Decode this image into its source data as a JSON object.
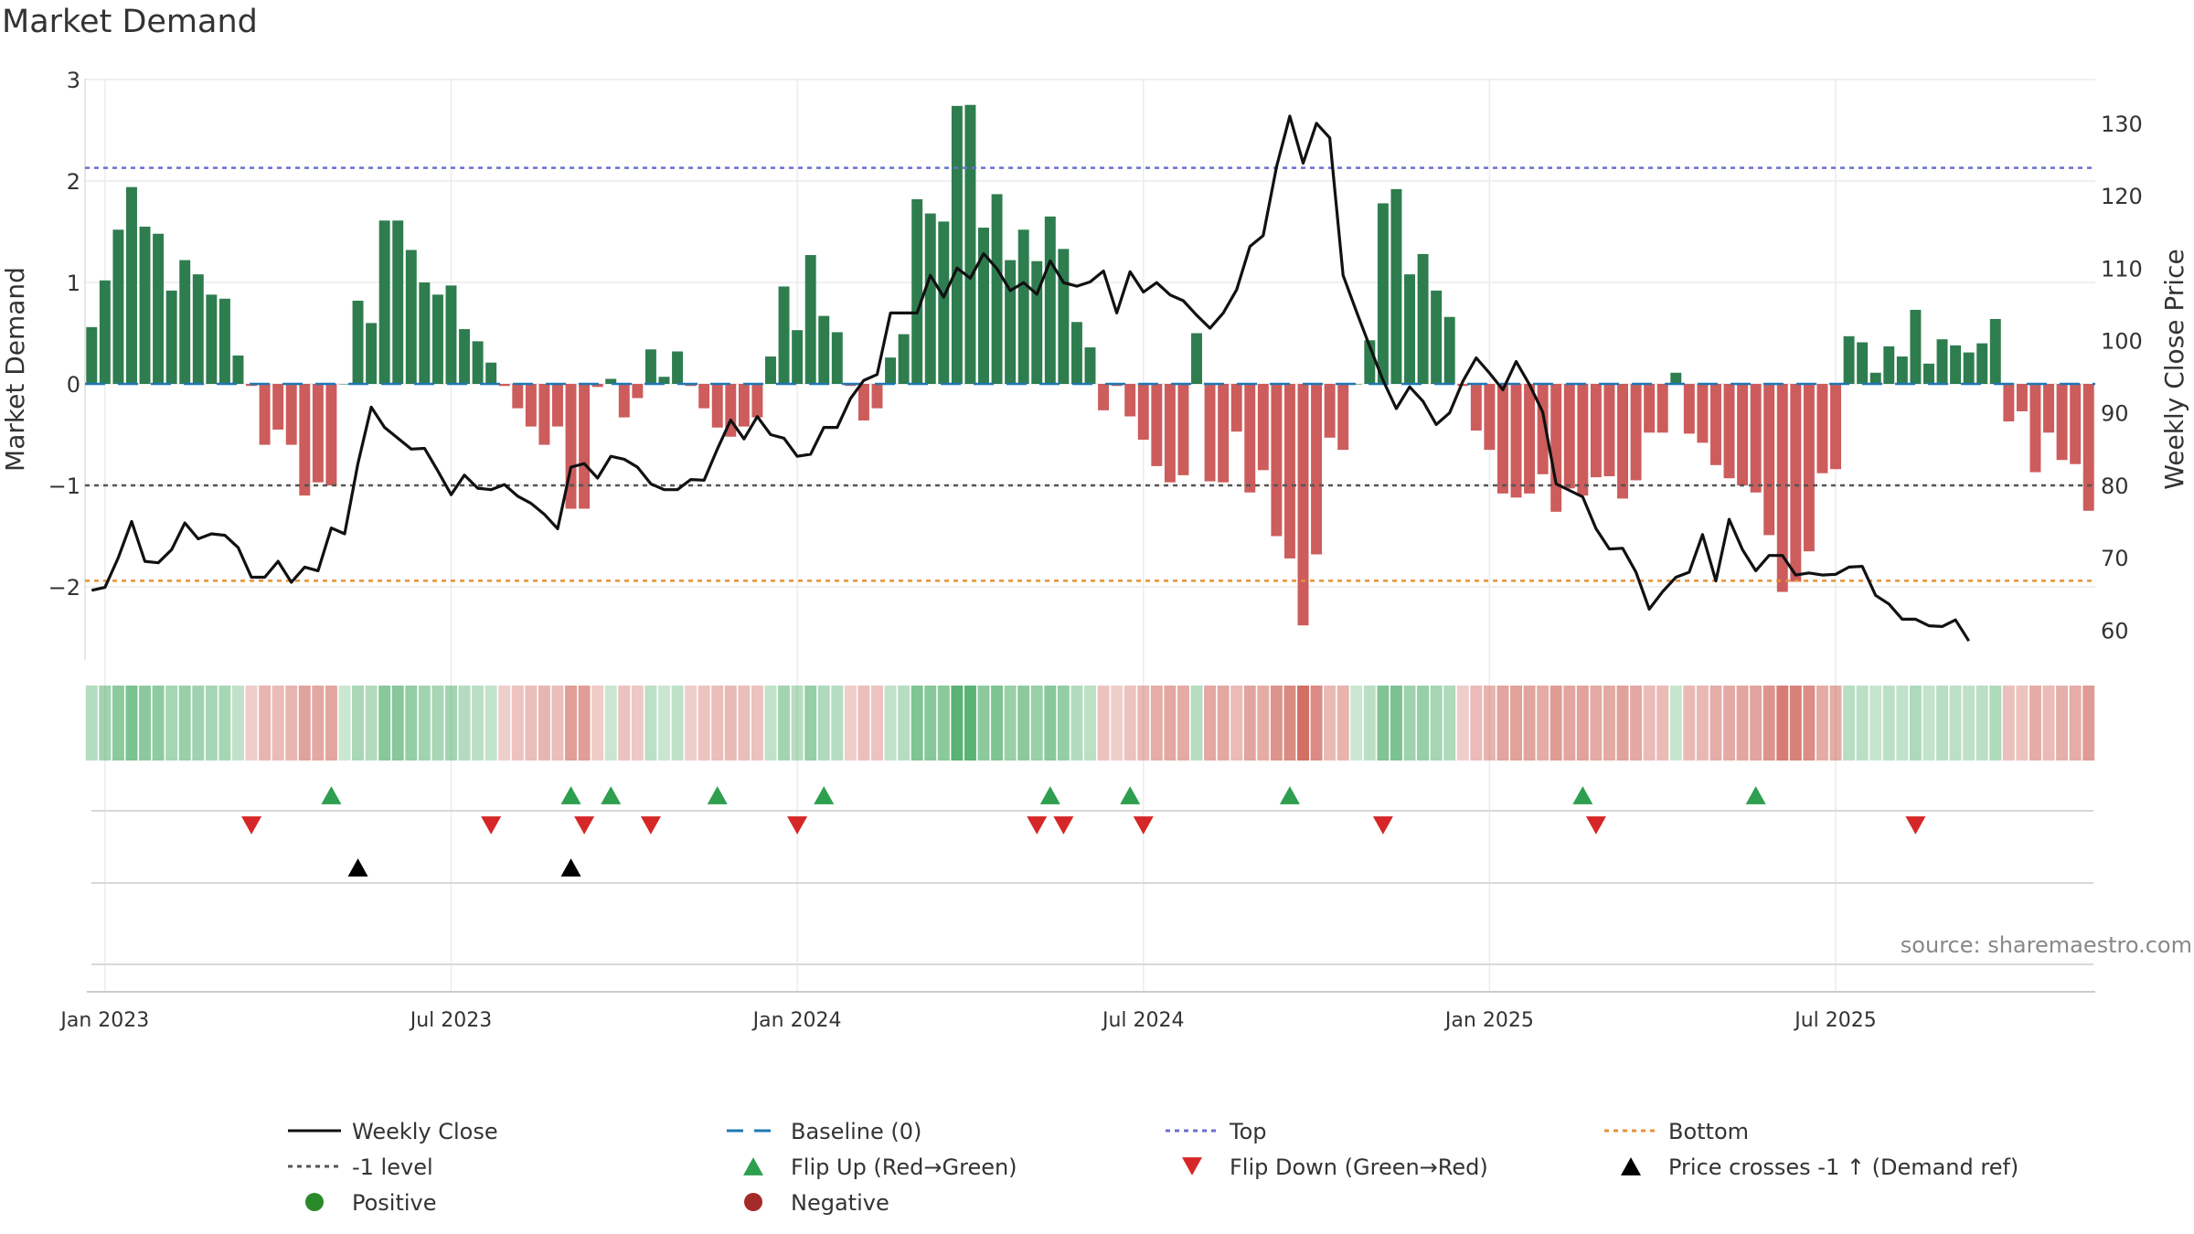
{
  "chart_data": {
    "type": "bar",
    "title": "Market Demand",
    "ylabel": "Market Demand",
    "y2label": "Weekly Close Price",
    "ylim": [
      -2.7,
      3.0
    ],
    "y2lim": [
      55,
      133
    ],
    "yticks": [
      "3",
      "2",
      "1",
      "0",
      "−1",
      "−2"
    ],
    "y2ticks": [
      "130",
      "120",
      "110",
      "100",
      "90",
      "80",
      "70",
      "60"
    ],
    "xticks": [
      "Jan 2023",
      "Jul 2023",
      "Jan 2024",
      "Jul 2024",
      "Jan 2025",
      "Jul 2025"
    ],
    "xtick_weeks": [
      1,
      27,
      53,
      79,
      105,
      131
    ],
    "top_level": 2.13,
    "bottom_level": -1.94,
    "minus1_level": -1.0,
    "demand": [
      0.56,
      1.02,
      1.52,
      1.94,
      1.55,
      1.48,
      0.92,
      1.22,
      1.08,
      0.88,
      0.84,
      0.28,
      -0.02,
      -0.6,
      -0.45,
      -0.6,
      -1.1,
      -0.97,
      -1.0,
      0.0,
      0.82,
      0.6,
      1.61,
      1.61,
      1.32,
      1.0,
      0.88,
      0.97,
      0.54,
      0.42,
      0.21,
      -0.02,
      -0.24,
      -0.42,
      -0.6,
      -0.42,
      -1.23,
      -1.23,
      -0.03,
      0.05,
      -0.33,
      -0.14,
      0.34,
      0.07,
      0.32,
      -0.02,
      -0.24,
      -0.43,
      -0.52,
      -0.42,
      -0.33,
      0.27,
      0.96,
      0.53,
      1.27,
      0.67,
      0.51,
      -0.02,
      -0.36,
      -0.24,
      0.26,
      0.49,
      1.82,
      1.68,
      1.6,
      2.74,
      2.75,
      1.54,
      1.87,
      1.22,
      1.52,
      1.21,
      1.65,
      1.33,
      0.61,
      0.36,
      -0.26,
      -0.02,
      -0.32,
      -0.55,
      -0.81,
      -0.97,
      -0.9,
      0.5,
      -0.96,
      -0.97,
      -0.47,
      -1.07,
      -0.85,
      -1.5,
      -1.72,
      -2.38,
      -1.68,
      -0.53,
      -0.65,
      0.0,
      0.43,
      1.78,
      1.92,
      1.08,
      1.28,
      0.92,
      0.66,
      -0.02,
      -0.46,
      -0.65,
      -1.08,
      -1.12,
      -1.08,
      -0.89,
      -1.26,
      -1.03,
      -1.1,
      -0.92,
      -0.91,
      -1.13,
      -0.95,
      -0.48,
      -0.48,
      0.11,
      -0.49,
      -0.58,
      -0.8,
      -0.93,
      -1.0,
      -1.07,
      -1.49,
      -2.05,
      -1.95,
      -1.65,
      -0.88,
      -0.84,
      0.47,
      0.41,
      0.11,
      0.37,
      0.27,
      0.73,
      0.2,
      0.44,
      0.38,
      0.31,
      0.4,
      0.64,
      -0.37,
      -0.27,
      -0.87,
      -0.48,
      -0.75,
      -0.79,
      -1.25
    ],
    "close": [
      65.5,
      65.9,
      70,
      75,
      69.5,
      69.3,
      71.1,
      74.8,
      72.6,
      73.3,
      73.1,
      71.4,
      67.3,
      67.3,
      69.5,
      66.6,
      68.7,
      68.2,
      74.1,
      73.3,
      83,
      90.8,
      88,
      86.5,
      85,
      85.1,
      82,
      78.7,
      81.4,
      79.6,
      79.4,
      80.1,
      78.5,
      77.5,
      76,
      74,
      82.5,
      83,
      81,
      84,
      83.6,
      82.5,
      80.2,
      79.4,
      79.4,
      80.8,
      80.7,
      85,
      89,
      86.4,
      89.5,
      87,
      86.5,
      84,
      84.3,
      88,
      88,
      92,
      94.5,
      95.3,
      103.8,
      103.8,
      103.8,
      109,
      106,
      110,
      108.6,
      112,
      109.9,
      106.9,
      108,
      106.4,
      111,
      108,
      107.5,
      108.1,
      109.6,
      103.8,
      109.5,
      106.7,
      108,
      106.3,
      105.5,
      103.5,
      101.7,
      103.8,
      107,
      113,
      114.5,
      124,
      131,
      124.5,
      130,
      128,
      109,
      104,
      99.2,
      94.5,
      90.6,
      93.6,
      91.6,
      88.4,
      90,
      94.4,
      97.6,
      95.5,
      93.2,
      97.1,
      93.9,
      90.1,
      80.2,
      79.3,
      78.4,
      74,
      71.2,
      71.3,
      68,
      62.9,
      65.3,
      67.3,
      68,
      73.2,
      66.8,
      75.3,
      71.1,
      68.2,
      70.3,
      70.3,
      67.6,
      67.9,
      67.6,
      67.7,
      68.7,
      68.8,
      64.8,
      63.6,
      61.5,
      61.5,
      60.6,
      60.5,
      61.4,
      58.5
    ],
    "flip_up_weeks": [
      18,
      36,
      39,
      47,
      55,
      72,
      78,
      90,
      112,
      125
    ],
    "flip_down_weeks": [
      12,
      30,
      37,
      42,
      53,
      71,
      73,
      79,
      97,
      113,
      137
    ],
    "cross_weeks": [
      20,
      36
    ],
    "colors": {
      "positive": "#2e7d4f",
      "negative": "#cd5c5c",
      "close": "#111111",
      "baseline": "#1f77b4",
      "top": "#6a6fd0",
      "bottom": "#e69138",
      "minus1": "#555555",
      "flip_up": "#2e9e4f",
      "flip_down": "#d62728",
      "cross": "#000000",
      "legend_positive": "#2a8a2a",
      "legend_negative": "#a52a2a"
    },
    "legend": [
      {
        "label": "Weekly Close",
        "kind": "line-solid",
        "color": "#111111"
      },
      {
        "label": "Baseline (0)",
        "kind": "line-dash",
        "color": "#1f77b4"
      },
      {
        "label": "Top",
        "kind": "line-dot",
        "color": "#6a6fd0"
      },
      {
        "label": "Bottom",
        "kind": "line-dot",
        "color": "#e69138"
      },
      {
        "label": "-1 level",
        "kind": "line-dot",
        "color": "#555555"
      },
      {
        "label": "Flip Up (Red→Green)",
        "kind": "tri-up",
        "color": "#2e9e4f"
      },
      {
        "label": "Flip Down (Green→Red)",
        "kind": "tri-down",
        "color": "#d62728"
      },
      {
        "label": "Price crosses -1 ↑ (Demand ref)",
        "kind": "tri-up",
        "color": "#000000"
      },
      {
        "label": "Positive",
        "kind": "dot",
        "color": "#2a8a2a"
      },
      {
        "label": "Negative",
        "kind": "dot",
        "color": "#a52a2a"
      }
    ],
    "source": "source: sharemaestro.com"
  }
}
